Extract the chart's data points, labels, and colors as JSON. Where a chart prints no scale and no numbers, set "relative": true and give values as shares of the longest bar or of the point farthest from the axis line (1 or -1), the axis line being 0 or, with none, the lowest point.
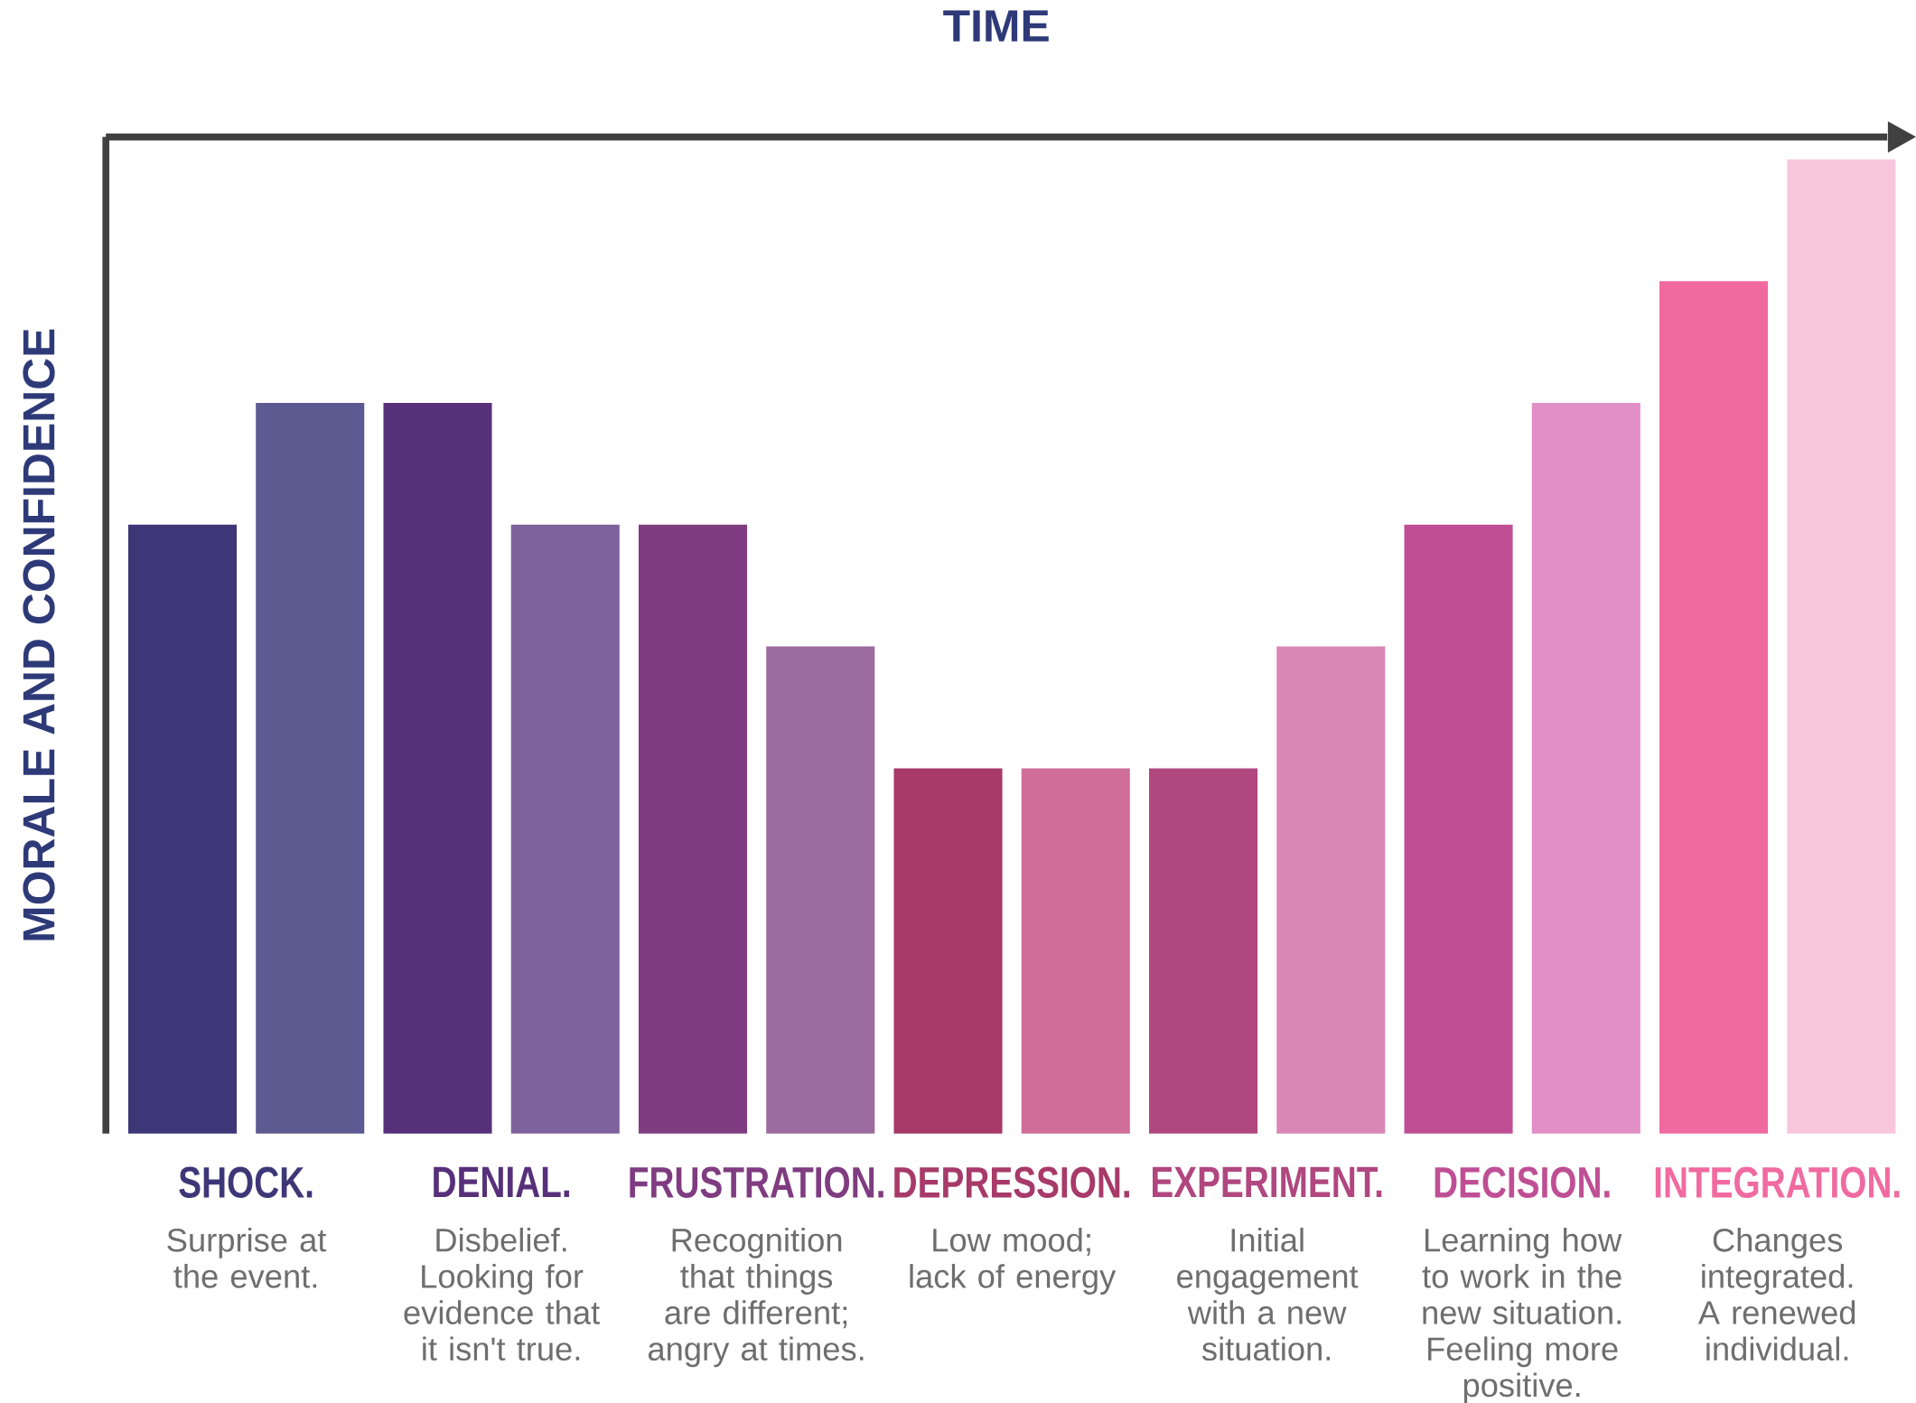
{
  "chart_data": {
    "type": "bar",
    "relative": true,
    "xlabel": "TIME",
    "ylabel": "MORALE AND CONFIDENCE",
    "categories": [
      "SHOCK.",
      "DENIAL.",
      "FRUSTRATION.",
      "DEPRESSION.",
      "EXPERIMENT.",
      "DECISION.",
      "INTEGRATION."
    ],
    "series": [
      {
        "colors": [
          "#3e3777",
          "#57307a",
          "#7f3c80",
          "#a73a69",
          "#b0477f",
          "#bf4f94",
          "#f06aa0"
        ],
        "values": [
          0.625,
          0.75,
          0.625,
          0.375,
          0.375,
          0.625,
          0.875
        ]
      },
      {
        "colors": [
          "#5d5a91",
          "#7e629c",
          "#9c6ba0",
          "#cf6e98",
          "#d987b5",
          "#e18fc6",
          "#f7c6db"
        ],
        "values": [
          0.75,
          0.625,
          0.5,
          0.375,
          0.5,
          0.75,
          1
        ]
      }
    ],
    "annotations": [
      "Surprise at the event.",
      "Disbelief. Looking for evidence that it isn't true.",
      "Recognition that things are different; angry at times.",
      "Low mood; lack of energy",
      "Initial engagement with a new situation.",
      "Learning how to work in the new situation. Feeling more positive.",
      "Changes integrated. A renewed individual."
    ]
  }
}
